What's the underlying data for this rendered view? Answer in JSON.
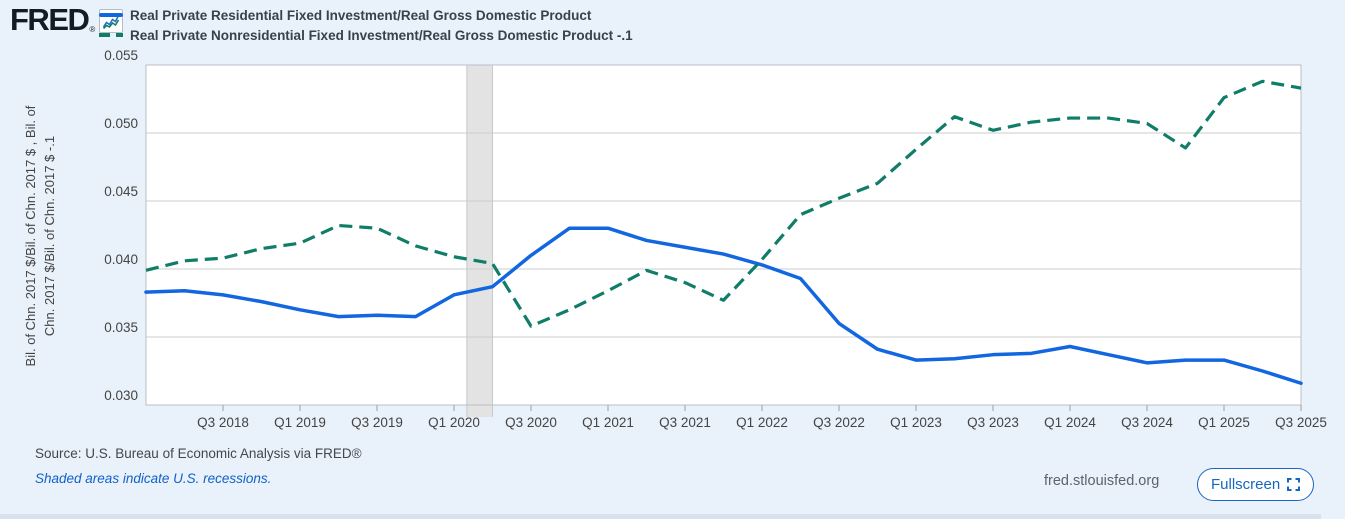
{
  "header": {
    "logo_text": "FRED",
    "logo_registered_mark": "®",
    "legend": [
      {
        "label": "Real Private Residential Fixed Investment/Real Gross Domestic Product",
        "color": "#1266e0",
        "line_style": "solid"
      },
      {
        "label": "Real Private Nonresidential Fixed Investment/Real Gross Domestic Product -.1",
        "color": "#0f7d68",
        "line_style": "dashed"
      }
    ]
  },
  "chart_data": {
    "type": "line",
    "title": "",
    "x": [
      "Q1 2018",
      "Q2 2018",
      "Q3 2018",
      "Q4 2018",
      "Q1 2019",
      "Q2 2019",
      "Q3 2019",
      "Q4 2019",
      "Q1 2020",
      "Q2 2020",
      "Q3 2020",
      "Q4 2020",
      "Q1 2021",
      "Q2 2021",
      "Q3 2021",
      "Q4 2021",
      "Q1 2022",
      "Q2 2022",
      "Q3 2022",
      "Q4 2022",
      "Q1 2023",
      "Q2 2023",
      "Q3 2023",
      "Q4 2023",
      "Q1 2024",
      "Q2 2024",
      "Q3 2024",
      "Q4 2024",
      "Q1 2025",
      "Q2 2025",
      "Q3 2025"
    ],
    "series": [
      {
        "name": "Real Private Residential Fixed Investment/Real Gross Domestic Product",
        "color": "#1266e0",
        "dash": false,
        "width": 3.5,
        "values": [
          0.0383,
          0.0384,
          0.0381,
          0.0376,
          0.037,
          0.0365,
          0.0366,
          0.0365,
          0.0381,
          0.0387,
          0.041,
          0.043,
          0.043,
          0.0421,
          0.0416,
          0.0411,
          0.0403,
          0.0393,
          0.036,
          0.0341,
          0.0333,
          0.0334,
          0.0337,
          0.0338,
          0.0343,
          0.0337,
          0.0331,
          0.0333,
          0.0333,
          0.0325,
          0.0316
        ]
      },
      {
        "name": "Real Private Nonresidential Fixed Investment/Real Gross Domestic Product -.1",
        "color": "#0f7d68",
        "dash": true,
        "width": 3.2,
        "values": [
          0.0399,
          0.0406,
          0.0408,
          0.0415,
          0.0419,
          0.0432,
          0.043,
          0.0417,
          0.0409,
          0.0404,
          0.0358,
          0.037,
          0.0384,
          0.0399,
          0.039,
          0.0377,
          0.0407,
          0.044,
          0.0452,
          0.0463,
          0.0488,
          0.0512,
          0.0502,
          0.0508,
          0.0511,
          0.0511,
          0.0507,
          0.0489,
          0.0526,
          0.0538,
          0.0533
        ]
      }
    ],
    "ylabel_lines": [
      "Bil. of Chn. 2017 $/Bil. of Chn. 2017 $ , Bil. of",
      "Chn. 2017 $/Bil. of Chn. 2017 $ -.1"
    ],
    "ylim": [
      0.03,
      0.055
    ],
    "yticks": [
      {
        "value": 0.055,
        "label": "0.055"
      },
      {
        "value": 0.05,
        "label": "0.050"
      },
      {
        "value": 0.045,
        "label": "0.045"
      },
      {
        "value": 0.04,
        "label": "0.040"
      },
      {
        "value": 0.035,
        "label": "0.035"
      },
      {
        "value": 0.03,
        "label": "0.030"
      }
    ],
    "xticks": [
      {
        "index": 2,
        "label": "Q3 2018"
      },
      {
        "index": 4,
        "label": "Q1 2019"
      },
      {
        "index": 6,
        "label": "Q3 2019"
      },
      {
        "index": 8,
        "label": "Q1 2020"
      },
      {
        "index": 10,
        "label": "Q3 2020"
      },
      {
        "index": 12,
        "label": "Q1 2021"
      },
      {
        "index": 14,
        "label": "Q3 2021"
      },
      {
        "index": 16,
        "label": "Q1 2022"
      },
      {
        "index": 18,
        "label": "Q3 2022"
      },
      {
        "index": 20,
        "label": "Q1 2023"
      },
      {
        "index": 22,
        "label": "Q3 2023"
      },
      {
        "index": 24,
        "label": "Q1 2024"
      },
      {
        "index": 26,
        "label": "Q3 2024"
      },
      {
        "index": 28,
        "label": "Q1 2025"
      },
      {
        "index": 30,
        "label": "Q3 2025"
      }
    ],
    "recession_band": {
      "start_index": 8.333,
      "end_index": 9.0,
      "note": "U.S. recession (2020)"
    },
    "grid": "horizontal",
    "legend_position": "top-left",
    "colors": {
      "background": "#e9f1fa",
      "plot_background": "#ffffff",
      "grid": "#cccccc",
      "plot_border": "#b9bfc7",
      "recession_band": "#e3e3e3",
      "recession_band_edge": "#c9c9c9",
      "tick_text": "#444444",
      "accent_blue": "#1266e0",
      "accent_teal": "#0f7d68",
      "link_blue": "#1261c9"
    }
  },
  "footer": {
    "source": "Source: U.S. Bureau of Economic Analysis via FRED®",
    "recession_note": "Shaded areas indicate U.S. recessions.",
    "site": "fred.stlouisfed.org",
    "fullscreen_label": "Fullscreen"
  }
}
